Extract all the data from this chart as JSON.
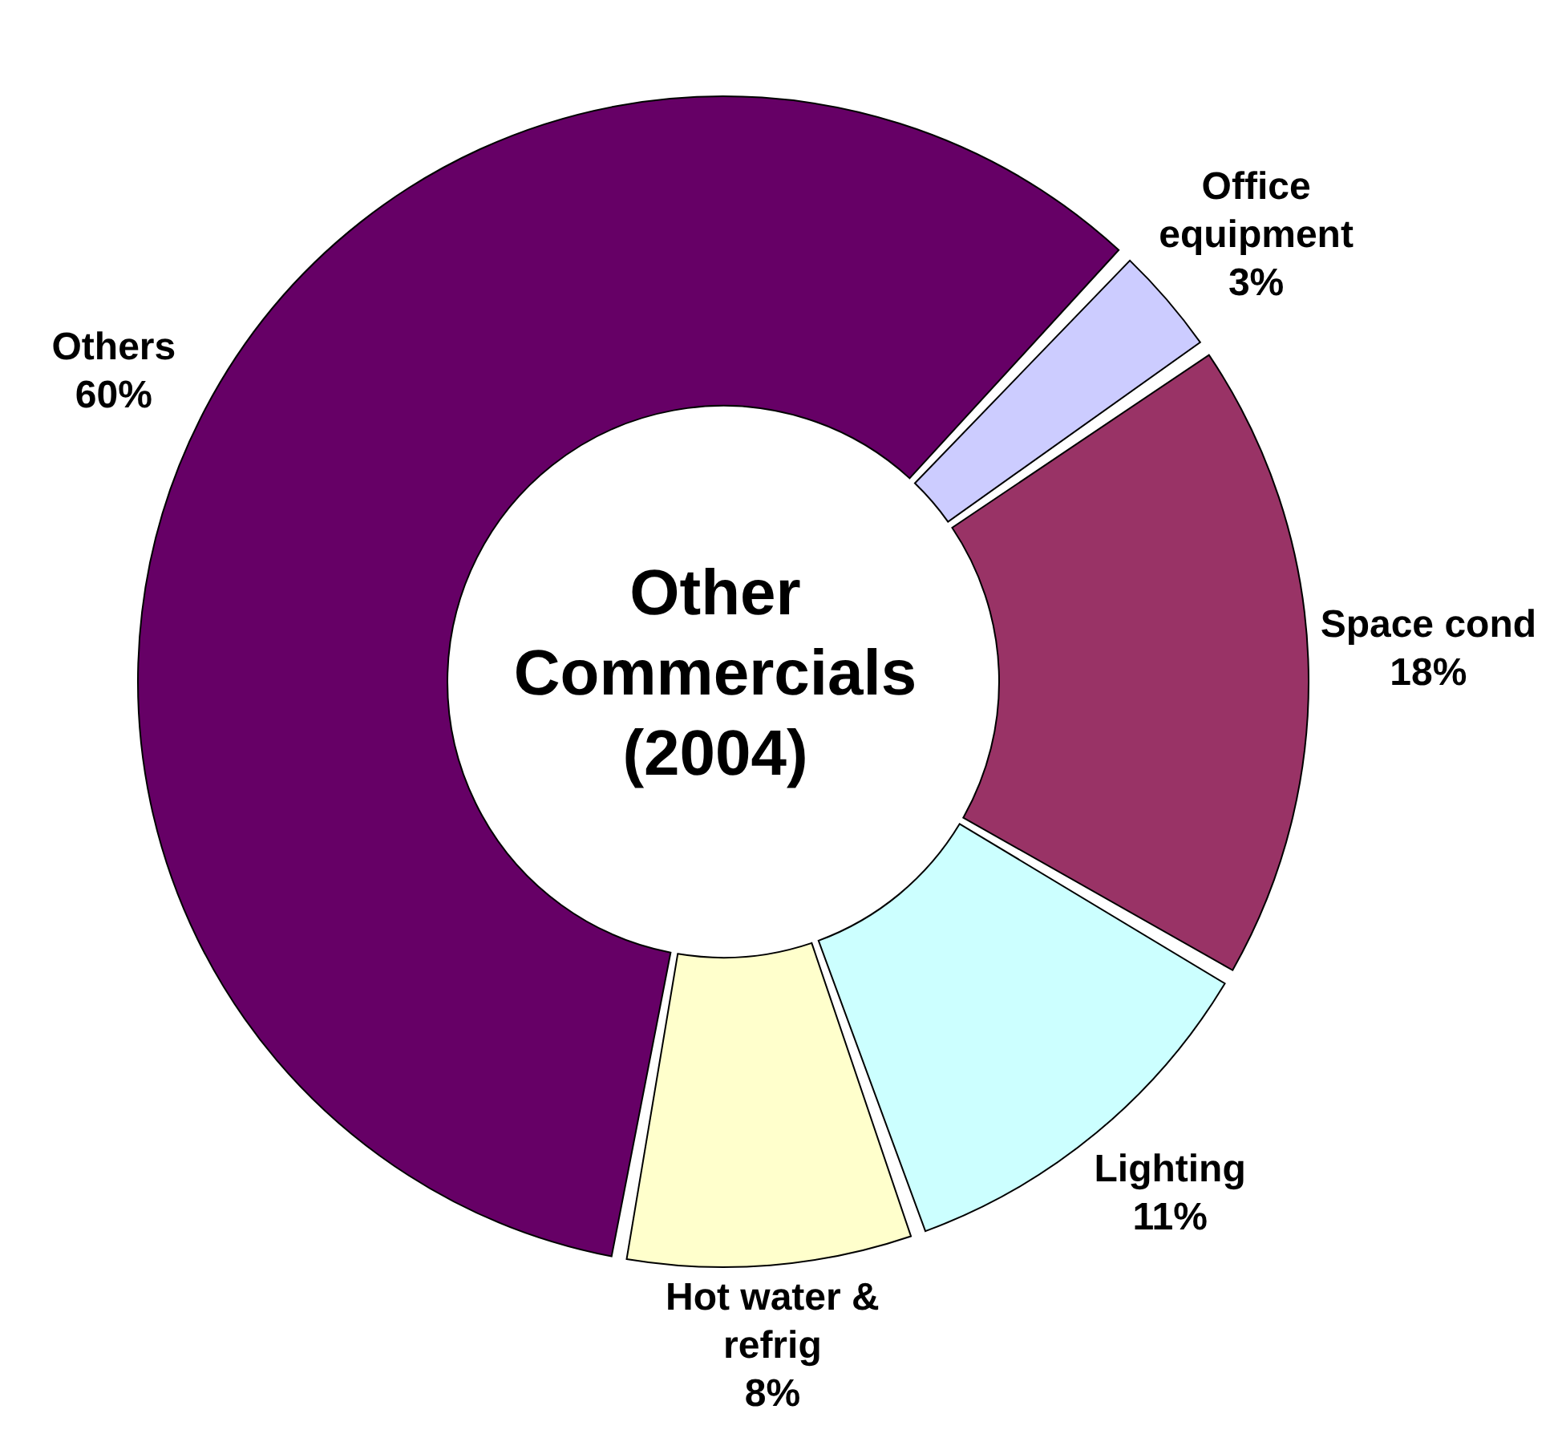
{
  "chart_data": {
    "type": "donut",
    "title": "Other Commercials (2004)",
    "categories": [
      "Office equipment",
      "Space cond",
      "Lighting",
      "Hot water & refrig",
      "Others"
    ],
    "values": [
      3,
      18,
      11,
      8,
      60
    ],
    "colors": [
      "#ccccff",
      "#993366",
      "#ccffff",
      "#ffffcc",
      "#660066"
    ],
    "value_labels": [
      "3%",
      "18%",
      "11%",
      "8%",
      "60%"
    ],
    "legend": false
  }
}
